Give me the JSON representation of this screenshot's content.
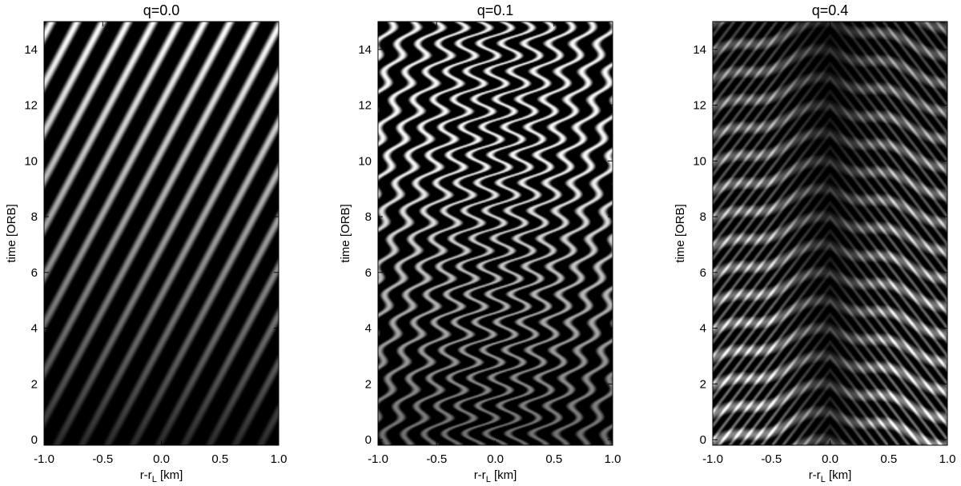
{
  "figure": {
    "background": "#ffffff"
  },
  "chart_data": [
    {
      "type": "heatmap",
      "title": "q=0.0",
      "xlabel": "r-r",
      "xlabel_sub": "L",
      "xlabel_unit": " [km]",
      "ylabel": "time [ORB]",
      "xlim": [
        -1.0,
        1.0
      ],
      "ylim": [
        -0.2,
        15.0
      ],
      "xticks": [
        -1.0,
        -0.5,
        0.0,
        0.5,
        1.0
      ],
      "xtick_labels": [
        "-1.0",
        "-0.5",
        "0.0",
        "0.5",
        "1.0"
      ],
      "yticks": [
        0,
        2,
        4,
        6,
        8,
        10,
        12,
        14
      ],
      "ytick_labels": [
        "0",
        "2",
        "4",
        "6",
        "8",
        "10",
        "12",
        "14"
      ],
      "colormap": "grayscale",
      "pattern": "diagonal stripes tilted upward to the right, contrast increasing with time",
      "stripe_count_across": 9
    },
    {
      "type": "heatmap",
      "title": "q=0.1",
      "xlabel": "r-r",
      "xlabel_sub": "L",
      "xlabel_unit": " [km]",
      "ylabel": "time [ORB]",
      "xlim": [
        -1.0,
        1.0
      ],
      "ylim": [
        -0.2,
        15.0
      ],
      "xticks": [
        -1.0,
        -0.5,
        0.0,
        0.5,
        1.0
      ],
      "xtick_labels": [
        "-1.0",
        "-0.5",
        "0.0",
        "0.5",
        "1.0"
      ],
      "yticks": [
        0,
        2,
        4,
        6,
        8,
        10,
        12,
        14
      ],
      "ytick_labels": [
        "0",
        "2",
        "4",
        "6",
        "8",
        "10",
        "12",
        "14"
      ],
      "colormap": "grayscale",
      "pattern": "wavy diagonal stripes oscillating about once per orbit",
      "oscillation_period_orb": 1.0
    },
    {
      "type": "heatmap",
      "title": "q=0.4",
      "xlabel": "r-r",
      "xlabel_sub": "L",
      "xlabel_unit": " [km]",
      "ylabel": "time [ORB]",
      "xlim": [
        -1.0,
        1.0
      ],
      "ylim": [
        -0.2,
        15.0
      ],
      "xticks": [
        -1.0,
        -0.5,
        0.0,
        0.5,
        1.0
      ],
      "xtick_labels": [
        "-1.0",
        "-0.5",
        "0.0",
        "0.5",
        "1.0"
      ],
      "yticks": [
        0,
        2,
        4,
        6,
        8,
        10,
        12,
        14
      ],
      "ytick_labels": [
        "0",
        "2",
        "4",
        "6",
        "8",
        "10",
        "12",
        "14"
      ],
      "colormap": "grayscale",
      "pattern": "chevron (zig-zag) bands symmetric about r-rL=0, period about one orbit",
      "oscillation_period_orb": 1.0
    }
  ]
}
